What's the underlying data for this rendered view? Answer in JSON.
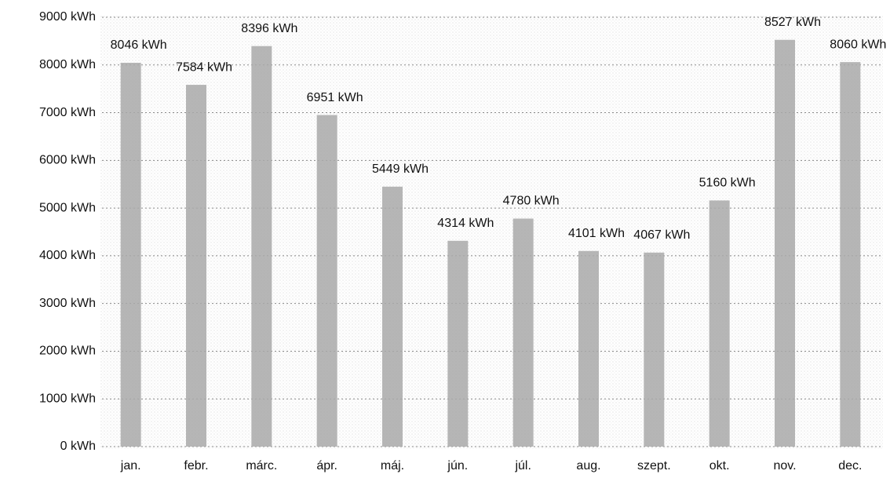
{
  "chart_data": {
    "type": "bar",
    "categories": [
      "jan.",
      "febr.",
      "márc.",
      "ápr.",
      "máj.",
      "jún.",
      "júl.",
      "aug.",
      "szept.",
      "okt.",
      "nov.",
      "dec."
    ],
    "values": [
      8046,
      7584,
      8396,
      6951,
      5449,
      4314,
      4780,
      4101,
      4067,
      5160,
      8527,
      8060
    ],
    "value_labels": [
      "8046 kWh",
      "7584 kWh",
      "8396 kWh",
      "6951 kWh",
      "5449 kWh",
      "4314 kWh",
      "4780 kWh",
      "4101 kWh",
      "4067 kWh",
      "5160 kWh",
      "8527 kWh",
      "8060 kWh"
    ],
    "color": "#a9a9a9",
    "ylim": [
      0,
      9000
    ],
    "yticks": [
      {
        "value": 0,
        "label": "0 kWh"
      },
      {
        "value": 1000,
        "label": "1000 kWh"
      },
      {
        "value": 2000,
        "label": "2000 kWh"
      },
      {
        "value": 3000,
        "label": "3000 kWh"
      },
      {
        "value": 4000,
        "label": "4000 kWh"
      },
      {
        "value": 5000,
        "label": "5000 kWh"
      },
      {
        "value": 6000,
        "label": "6000 kWh"
      },
      {
        "value": 7000,
        "label": "7000 kWh"
      },
      {
        "value": 8000,
        "label": "8000 kWh"
      },
      {
        "value": 9000,
        "label": "9000 kWh"
      }
    ],
    "grid": true
  }
}
